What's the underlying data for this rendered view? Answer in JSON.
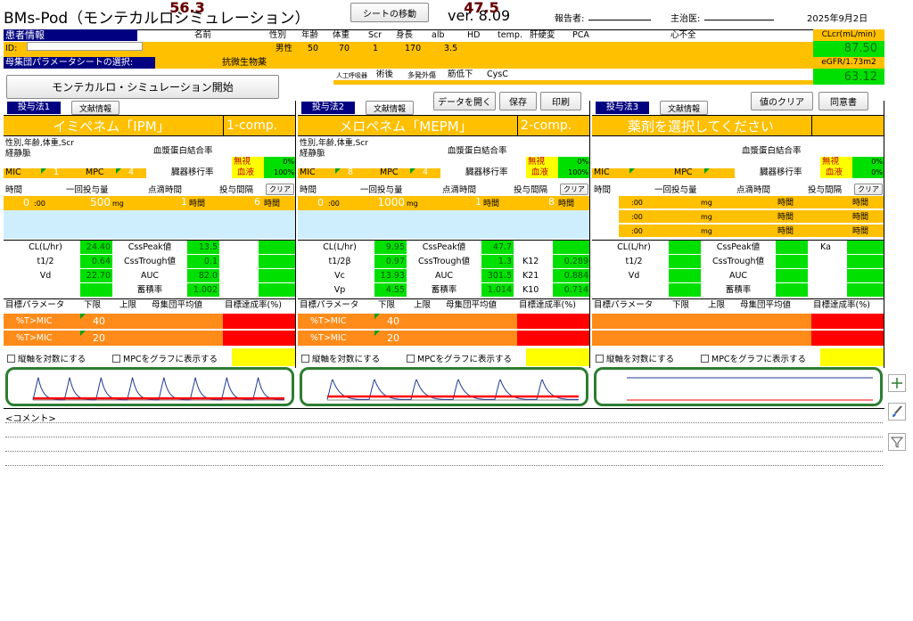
{
  "header": {
    "app_title": "BMs-Pod（モンテカルロシミュレーション）",
    "move_sheet": "シートの移動",
    "version": "ver. 8.09",
    "reporter_label": "報告者:",
    "doctor_label": "主治医:",
    "date": "2025年9月2日"
  },
  "patient": {
    "section": "患者情報",
    "name_h": "名前",
    "sex_h": "性別",
    "age_h": "年齢",
    "weight_h": "体重",
    "scr_h": "Scr",
    "height_h": "身長",
    "alb_h": "alb",
    "hd_h": "HD",
    "temp_h": "temp.",
    "liver_h": "肝硬変",
    "pca_h": "PCA",
    "hf_h": "心不全",
    "id_label": "ID:",
    "sex": "男性",
    "age": "50",
    "weight": "70",
    "scr": "1",
    "height": "170",
    "alb": "3.5",
    "pop_label": "母集団パラメータシートの選択:",
    "pop_value": "抗微生物薬",
    "sub_labels": [
      "人工呼吸器",
      "術後",
      "多発外傷",
      "筋低下",
      "CysC"
    ],
    "clcr_label": "CLcr(mL/min)",
    "clcr_value": "87.50",
    "egfr_label": "eGFR/1.73m2",
    "egfr_value": "63.12",
    "start_button": "モンテカルロ・シミュレーション開始"
  },
  "toolbar": {
    "open": "データを開く",
    "save": "保存",
    "print": "印刷",
    "clear_values": "値のクリア",
    "consent": "同意書"
  },
  "labels": {
    "lit": "文献情報",
    "covars": "性別,年齢,体重,Scr",
    "route": "経静脈",
    "mic": "MIC",
    "mpc": "MPC",
    "protein": "血漿蛋白結合率",
    "ignore": "無視",
    "tissue": "臓器移行率",
    "plasma": "血液",
    "time": "時間",
    "single_dose": "一回投与量",
    "infusion": "点滴時間",
    "interval": "投与間隔",
    "clear": "クリア",
    "colon00": ":00",
    "mg": "mg",
    "hours": "時間",
    "cl": "CL(L/hr)",
    "t12": "t1/2",
    "t12b": "t1/2β",
    "vd": "Vd",
    "vc": "Vc",
    "vp": "Vp",
    "csspeak": "CssPeak値",
    "csstrough": "CssTrough値",
    "auc": "AUC",
    "accum": "蓄積率",
    "k12": "K12",
    "k21": "K21",
    "k10": "K10",
    "ka": "Ka",
    "target_param": "目標パラメータ",
    "lower": "下限",
    "upper": "上限",
    "pop_mean": "母集団平均値",
    "achieve": "目標達成率(%)",
    "tmic": "%T>MIC",
    "log_axis": "縦軸を対数にする",
    "mpc_graph": "MPCをグラフに表示する",
    "comment": "<コメント>"
  },
  "regimens": [
    {
      "tab": "投与法1",
      "drug": "イミペネム「IPM」",
      "model": "1-comp.",
      "mic": "1",
      "mpc": "4",
      "prot_pct": "0%",
      "tissue_pct": "100%",
      "start_h": "0",
      "dose": "500",
      "inf": "1",
      "interval": "6",
      "cl": "24.40",
      "t12": "0.64",
      "vd": "22.70",
      "peak": "13.5",
      "trough": "0.1",
      "auc": "82.0",
      "accum": "1.002",
      "t1_lower": "40",
      "t1_mean": "56.3",
      "t2_lower": "20",
      "t2_mean": "56.3"
    },
    {
      "tab": "投与法2",
      "drug": "メロペネム「MEPM」",
      "model": "2-comp.",
      "mic": "8",
      "mpc": "4",
      "prot_pct": "0%",
      "tissue_pct": "100%",
      "start_h": "0",
      "dose": "1000",
      "inf": "1",
      "interval": "8",
      "cl": "9.95",
      "t12": "0.97",
      "vc": "13.93",
      "vp": "4.55",
      "peak": "47.7",
      "trough": "1.3",
      "auc": "301.5",
      "accum": "1.014",
      "k12": "0.289",
      "k21": "0.884",
      "k10": "0.714",
      "t1_lower": "40",
      "t1_mean": "47.5",
      "t2_lower": "20",
      "t2_mean": "47.5"
    },
    {
      "tab": "投与法3",
      "drug": "薬剤を選択してください",
      "prot_pct": "0%",
      "tissue_pct": "0%"
    }
  ],
  "chart_data": [
    {
      "type": "line",
      "x_ticks": [
        0,
        6,
        12,
        18,
        24,
        30,
        36,
        42,
        48
      ],
      "y_ticks": [
        0,
        2,
        4,
        6,
        8,
        10,
        12,
        14,
        16
      ],
      "ylim": [
        0,
        16
      ],
      "xlim": [
        0,
        48
      ],
      "series": [
        {
          "kind": "concentration",
          "color": "#1f3a93",
          "peak": 13.5,
          "trough": 0.1,
          "interval": 6,
          "infusion": 1,
          "half_life": 0.64
        },
        {
          "kind": "mic",
          "color": "#ff0000",
          "value": 1
        }
      ]
    },
    {
      "type": "line",
      "x_ticks": [
        0,
        6,
        12,
        18,
        24,
        30,
        36,
        42,
        48
      ],
      "y_ticks": [
        0,
        10,
        20,
        30,
        40,
        50,
        60
      ],
      "ylim": [
        0,
        60
      ],
      "xlim": [
        0,
        48
      ],
      "series": [
        {
          "kind": "concentration",
          "color": "#1f3a93",
          "peak": 47.7,
          "trough": 1.3,
          "interval": 8,
          "infusion": 1,
          "half_life": 0.97
        },
        {
          "kind": "mic",
          "color": "#ff0000",
          "value": 8
        }
      ]
    },
    {
      "type": "line",
      "x_ticks": [
        0,
        6,
        12,
        18,
        24,
        30,
        36,
        42,
        48
      ],
      "y_ticks": [
        "0",
        "0.0002",
        "0.0004",
        "0.0006",
        "0.0008",
        "0.001",
        "0.0012"
      ],
      "ylim": [
        0,
        0.0012
      ],
      "xlim": [
        0,
        48
      ],
      "series": [
        {
          "kind": "flat",
          "color": "#1f3a93",
          "value": 0.001
        },
        {
          "kind": "flat",
          "color": "#ff0000",
          "value": 0
        }
      ]
    }
  ]
}
